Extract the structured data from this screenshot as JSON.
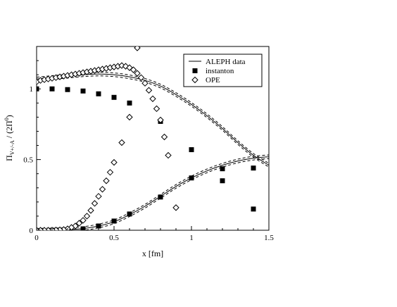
{
  "chart_data": {
    "type": "scatter",
    "title": "",
    "xlabel": "x [fm]",
    "ylabel": {
      "main": "Π",
      "sub": "V+/-A",
      "mid": " / (2Π",
      "sup": "0",
      "end": ")"
    },
    "xlim": [
      0,
      1.5
    ],
    "ylim": [
      0,
      1.3
    ],
    "x_ticks": [
      0,
      0.5,
      1,
      1.5
    ],
    "x_tick_labels": [
      "0",
      "0.5",
      "1",
      "1.5"
    ],
    "y_ticks": [
      0,
      0.5,
      1
    ],
    "y_tick_labels": [
      "0",
      "0.5",
      "1"
    ],
    "grid": false,
    "legend_position": "top-right",
    "legend": [
      {
        "label": "ALEPH data",
        "marker": "line"
      },
      {
        "label": "instanton",
        "marker": "filled-square"
      },
      {
        "label": "OPE",
        "marker": "open-diamond"
      }
    ],
    "series": [
      {
        "name": "ALEPH data",
        "style": "solid",
        "x": [
          0,
          0.1,
          0.2,
          0.3,
          0.4,
          0.5,
          0.6,
          0.7,
          0.8,
          0.9,
          1.0,
          1.1,
          1.2,
          1.3,
          1.4,
          1.5
        ],
        "y": [
          1.07,
          1.08,
          1.09,
          1.1,
          1.105,
          1.1,
          1.085,
          1.06,
          1.02,
          0.96,
          0.89,
          0.81,
          0.72,
          0.62,
          0.53,
          0.46
        ]
      },
      {
        "name": "ALEPH data",
        "style": "solid",
        "x": [
          0,
          0.1,
          0.2,
          0.3,
          0.4,
          0.5,
          0.6,
          0.7,
          0.8,
          0.9,
          1.0,
          1.1,
          1.2,
          1.3,
          1.4,
          1.5
        ],
        "y": [
          0.0,
          0.002,
          0.005,
          0.012,
          0.03,
          0.06,
          0.11,
          0.17,
          0.24,
          0.31,
          0.37,
          0.42,
          0.46,
          0.49,
          0.51,
          0.52
        ]
      },
      {
        "name": "instanton",
        "marker": "filled-square",
        "x": [
          0,
          0.1,
          0.2,
          0.3,
          0.4,
          0.5,
          0.6,
          0.8,
          1.0,
          1.2,
          1.4
        ],
        "y": [
          1.0,
          1.0,
          0.995,
          0.985,
          0.965,
          0.94,
          0.9,
          0.77,
          0.57,
          0.435,
          0.44
        ]
      },
      {
        "name": "instanton",
        "marker": "filled-square",
        "x": [
          0.1,
          0.2,
          0.3,
          0.4,
          0.5,
          0.6,
          0.8,
          1.0,
          1.2,
          1.4
        ],
        "y": [
          0.0,
          0.003,
          0.01,
          0.03,
          0.065,
          0.115,
          0.235,
          0.37,
          0.35,
          0.15
        ]
      },
      {
        "name": "OPE",
        "marker": "open-diamond",
        "x": [
          0,
          0.025,
          0.05,
          0.075,
          0.1,
          0.125,
          0.15,
          0.175,
          0.2,
          0.225,
          0.25,
          0.275,
          0.3,
          0.325,
          0.35,
          0.375,
          0.4,
          0.425,
          0.45,
          0.475,
          0.5,
          0.525,
          0.55,
          0.575,
          0.6,
          0.625,
          0.65,
          0.675,
          0.7,
          0.725,
          0.75,
          0.775,
          0.8,
          0.825,
          0.85
        ],
        "y": [
          1.05,
          1.06,
          1.065,
          1.07,
          1.075,
          1.08,
          1.085,
          1.09,
          1.095,
          1.1,
          1.105,
          1.11,
          1.115,
          1.12,
          1.125,
          1.13,
          1.135,
          1.14,
          1.145,
          1.15,
          1.155,
          1.16,
          1.165,
          1.16,
          1.15,
          1.135,
          1.11,
          1.08,
          1.04,
          0.99,
          0.93,
          0.86,
          0.78,
          0.66,
          0.53
        ]
      },
      {
        "name": "OPE",
        "marker": "open-diamond",
        "x": [
          0.65,
          0.6,
          0.55,
          0.5,
          0.475,
          0.45,
          0.425,
          0.4,
          0.375,
          0.35,
          0.325,
          0.3,
          0.275,
          0.25,
          0.225,
          0.2,
          0.175,
          0.15,
          0.125,
          0.1,
          0.075,
          0.05,
          0.025,
          0.0
        ],
        "y": [
          1.29,
          0.8,
          0.62,
          0.48,
          0.41,
          0.35,
          0.29,
          0.24,
          0.19,
          0.14,
          0.1,
          0.07,
          0.05,
          0.03,
          0.02,
          0.01,
          0.005,
          0.003,
          0.002,
          0.001,
          0.0,
          0.0,
          0.0,
          0.0
        ]
      },
      {
        "name": "OPE",
        "marker": "open-diamond",
        "x": [
          0.9
        ],
        "y": [
          0.16
        ]
      }
    ],
    "error_band": {
      "style": "dashed",
      "offset": 0.013
    }
  }
}
